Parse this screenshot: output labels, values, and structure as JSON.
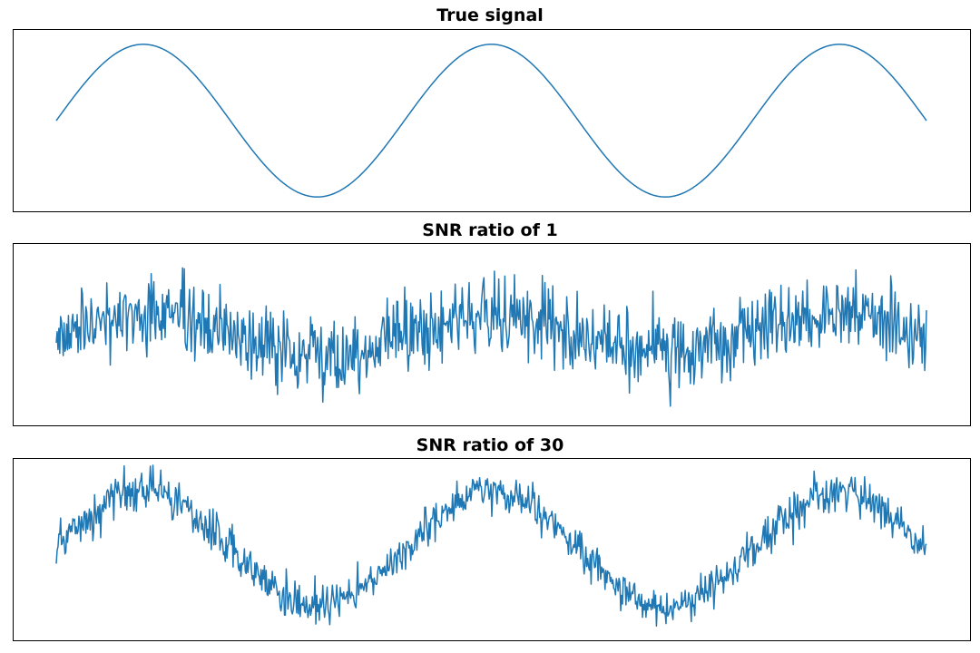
{
  "figure": {
    "line_color": "#1f77b4",
    "background": "#ffffff"
  },
  "chart_data": [
    {
      "type": "line",
      "title": "True signal",
      "xlabel": "",
      "ylabel": "",
      "axes_visible": false,
      "grid": false,
      "x_range": [
        0,
        1000
      ],
      "y_range": [
        -1.2,
        1.2
      ],
      "signal": {
        "amplitude": 1.0,
        "cycles": 2.5,
        "phase_rad": 0.0
      },
      "noise_std": 0.0
    },
    {
      "type": "line",
      "title": "SNR ratio of 1",
      "xlabel": "",
      "ylabel": "",
      "axes_visible": false,
      "grid": false,
      "x_range": [
        0,
        1000
      ],
      "y_range": [
        -4.7,
        4.7
      ],
      "signal": {
        "amplitude": 1.0,
        "cycles": 2.5,
        "phase_rad": 0.0
      },
      "noise_std": 1.0,
      "n_points": 1000
    },
    {
      "type": "line",
      "title": "SNR ratio of 30",
      "xlabel": "",
      "ylabel": "",
      "axes_visible": false,
      "grid": false,
      "x_range": [
        0,
        1000
      ],
      "y_range": [
        -1.6,
        1.6
      ],
      "signal": {
        "amplitude": 1.0,
        "cycles": 2.5,
        "phase_rad": 0.0
      },
      "noise_std": 0.18,
      "n_points": 1000
    }
  ]
}
